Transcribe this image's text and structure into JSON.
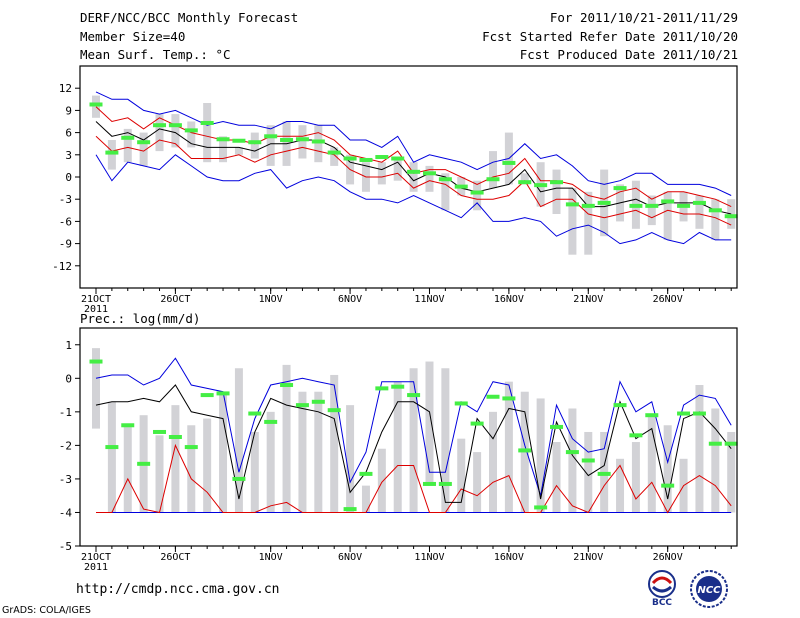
{
  "header": {
    "title": "DERF/NCC/BCC Monthly Forecast",
    "member_size": "Member Size=40",
    "variable": "Mean Surf. Temp.: °C",
    "for_range": "For 2011/10/21-2011/11/29",
    "started": "Fcst Started Refer Date 2011/10/20",
    "produced": "Fcst Produced Date 2011/10/21"
  },
  "footer": {
    "url": "http://cmdp.ncc.cma.gov.cn",
    "grads": "GrADS: COLA/IGES"
  },
  "logos": {
    "bcc": "BCC",
    "ncc": "NCC"
  },
  "colors": {
    "box": "#d2d2d6",
    "median": "#44ee44",
    "mean": "#000000",
    "sigma": "#dd0000",
    "extreme": "#0000dd"
  },
  "chart_data": [
    {
      "name": "temperature",
      "type": "line",
      "title": "Mean Surf. Temp.: °C",
      "ylim": [
        -15,
        15
      ],
      "yticks": [
        12,
        9,
        6,
        3,
        0,
        -3,
        -6,
        -9,
        -12
      ],
      "xticks": [
        {
          "day": 0,
          "label": "21OCT",
          "sub": "2011"
        },
        {
          "day": 5,
          "label": "26OCT",
          "sub": ""
        },
        {
          "day": 11,
          "label": "1NOV",
          "sub": ""
        },
        {
          "day": 16,
          "label": "6NOV",
          "sub": ""
        },
        {
          "day": 21,
          "label": "11NOV",
          "sub": ""
        },
        {
          "day": 26,
          "label": "16NOV",
          "sub": ""
        },
        {
          "day": 31,
          "label": "21NOV",
          "sub": ""
        },
        {
          "day": 36,
          "label": "26NOV",
          "sub": ""
        }
      ],
      "max": [
        11.5,
        10.5,
        10.5,
        9,
        8.5,
        9,
        8,
        7,
        7.5,
        7,
        7,
        6.5,
        7.5,
        7.5,
        7,
        7,
        5,
        5,
        4,
        5.5,
        2,
        3,
        2.5,
        2,
        1,
        2,
        2.5,
        4.5,
        2.5,
        3,
        1.5,
        -0.5,
        -1,
        -0.5,
        0.5,
        0.5,
        -1,
        -1,
        -1,
        -1.5,
        -2.5
      ],
      "min": [
        3,
        -0.5,
        2,
        1.5,
        1,
        3,
        1.5,
        0,
        -0.5,
        -0.5,
        0.5,
        1,
        -1.5,
        -0.5,
        0,
        -0.5,
        -2,
        -3,
        -3,
        -3.5,
        -2.5,
        -3.5,
        -4.5,
        -5.5,
        -3.5,
        -6,
        -6,
        -5.5,
        -6,
        -8,
        -7,
        -6.5,
        -7.5,
        -9,
        -8.5,
        -7.5,
        -8.5,
        -9,
        -7.5,
        -8.5,
        -8.5
      ],
      "sigma_upper": [
        9.5,
        7.5,
        8,
        6.5,
        8,
        7,
        6,
        5.5,
        5,
        5,
        4.5,
        5.5,
        5.5,
        5.5,
        6,
        5,
        3,
        2.5,
        2,
        3.5,
        0.5,
        1,
        1,
        0,
        -1,
        0,
        0.5,
        2.5,
        -0.5,
        -0.5,
        -1,
        -2.5,
        -3,
        -2,
        -1.5,
        -3,
        -2,
        -2,
        -2.5,
        -3,
        -4
      ],
      "sigma_lower": [
        5.5,
        3.5,
        4,
        3.5,
        5,
        4.5,
        2.5,
        2.5,
        2.5,
        3,
        2,
        3,
        3.5,
        4,
        3.5,
        3,
        1,
        0,
        0,
        0.5,
        -1.5,
        -0.5,
        -1,
        -2.5,
        -3,
        -3,
        -2.5,
        -0.5,
        -4,
        -3,
        -3,
        -5,
        -5.5,
        -5,
        -4.5,
        -5.5,
        -4.5,
        -5,
        -5,
        -5.5,
        -6.5
      ],
      "mean": [
        7.5,
        5.5,
        6,
        5,
        6.5,
        6,
        4.5,
        4,
        4,
        4,
        3.5,
        4.5,
        4.5,
        5,
        5,
        4,
        2,
        1.5,
        1,
        2,
        -0.5,
        0.5,
        0,
        -1.5,
        -2,
        -1.5,
        -1,
        1,
        -2,
        -1.5,
        -1.5,
        -4,
        -4,
        -3.5,
        -3,
        -4,
        -3.5,
        -3.5,
        -3.5,
        -4.5,
        -5
      ],
      "box_top": [
        11,
        5,
        6.5,
        6,
        8.5,
        8.5,
        7.5,
        10,
        5.5,
        4,
        6,
        7,
        7.5,
        7,
        7,
        4,
        3,
        2,
        2,
        2.5,
        2,
        1.5,
        0.5,
        0,
        -0.5,
        3.5,
        6,
        0.5,
        2,
        1,
        -1.5,
        -2,
        1,
        -1,
        -0.5,
        -2.5,
        -2,
        -2,
        -2.5,
        -3,
        -3
      ],
      "box_bottom": [
        8,
        1,
        2,
        1.5,
        3.5,
        4,
        4,
        2,
        2,
        3,
        2.5,
        1.5,
        1.5,
        2.5,
        2,
        1.5,
        -1,
        -2,
        -1,
        -0.5,
        -2,
        -2,
        -4.5,
        -2.5,
        -4.5,
        -1.5,
        -1,
        -1,
        -4,
        -5,
        -10.5,
        -10.5,
        -8,
        -6,
        -7,
        -6.5,
        -8.5,
        -6,
        -7,
        -8.5,
        -7
      ],
      "median": [
        9.8,
        3.3,
        5.3,
        4.7,
        7,
        7,
        6.3,
        7.3,
        5.1,
        4.9,
        4.7,
        5.5,
        5,
        5.1,
        4.8,
        3.3,
        2.5,
        2.3,
        2.7,
        2.5,
        0.7,
        0.5,
        -0.3,
        -1.3,
        -2.1,
        -0.3,
        1.9,
        -0.7,
        -1.1,
        -0.7,
        -3.7,
        -3.9,
        -3.5,
        -1.5,
        -3.9,
        -3.9,
        -3.3,
        -3.9,
        -3.5,
        -4.5,
        -5.3
      ]
    },
    {
      "name": "precipitation",
      "type": "line",
      "title": "Prec.: log(mm/d)",
      "ylim": [
        -5,
        1.5
      ],
      "yticks": [
        1,
        0,
        -1,
        -2,
        -3,
        -4,
        -5
      ],
      "xticks": [
        {
          "day": 0,
          "label": "21OCT",
          "sub": "2011"
        },
        {
          "day": 5,
          "label": "26OCT",
          "sub": ""
        },
        {
          "day": 11,
          "label": "1NOV",
          "sub": ""
        },
        {
          "day": 16,
          "label": "6NOV",
          "sub": ""
        },
        {
          "day": 21,
          "label": "11NOV",
          "sub": ""
        },
        {
          "day": 26,
          "label": "16NOV",
          "sub": ""
        },
        {
          "day": 31,
          "label": "21NOV",
          "sub": ""
        },
        {
          "day": 36,
          "label": "26NOV",
          "sub": ""
        }
      ],
      "max": [
        0,
        0.1,
        0.1,
        -0.2,
        0,
        0.6,
        -0.2,
        -0.3,
        -0.4,
        -2.8,
        -1.2,
        -0.2,
        -0.1,
        0,
        -0.1,
        -0.2,
        -3.1,
        -2.2,
        -0.1,
        -0.1,
        -0.1,
        -2.8,
        -2.8,
        -0.7,
        -1,
        -0.1,
        -0.2,
        -2,
        -3.5,
        -0.8,
        -1.8,
        -2.2,
        -2.1,
        -0.1,
        -1,
        -0.7,
        -2.5,
        -0.8,
        -0.5,
        -0.6,
        -1.4
      ],
      "min": [
        -4,
        -4,
        -4,
        -4,
        -4,
        -4,
        -4,
        -4,
        -4,
        -4,
        -4,
        -4,
        -4,
        -4,
        -4,
        -4,
        -4,
        -4,
        -4,
        -4,
        -4,
        -4,
        -4,
        -4,
        -4,
        -4,
        -4,
        -4,
        -4,
        -4,
        -4,
        -4,
        -4,
        -4,
        -4,
        -4,
        -4,
        -4,
        -4,
        -4,
        -4
      ],
      "mean": [
        -0.8,
        -0.7,
        -0.7,
        -0.6,
        -0.7,
        -0.2,
        -1,
        -1.1,
        -1.2,
        -3.6,
        -1.6,
        -0.6,
        -0.8,
        -0.9,
        -1,
        -1.2,
        -3.4,
        -2.8,
        -1.6,
        -0.7,
        -0.7,
        -1,
        -3.7,
        -3.7,
        -1.2,
        -1.8,
        -0.9,
        -1,
        -3.6,
        -1.3,
        -2.3,
        -2.9,
        -2.6,
        -0.7,
        -1.8,
        -1.5,
        -3.6,
        -1.2,
        -1,
        -1.5,
        -2.1
      ],
      "sigma": [
        -4,
        -4,
        -3,
        -3.9,
        -4,
        -2,
        -3,
        -3.4,
        -4,
        -4,
        -4,
        -3.8,
        -3.7,
        -4,
        -4,
        -4,
        -4,
        -4,
        -3.1,
        -2.6,
        -2.6,
        -4,
        -4,
        -3.3,
        -3.5,
        -3.1,
        -2.9,
        -4,
        -4,
        -3.2,
        -3.8,
        -4,
        -3.2,
        -2.6,
        -3.6,
        -3.1,
        -4,
        -3.2,
        -2.9,
        -3.2,
        -3.8
      ],
      "box_top": [
        0.9,
        -0.7,
        -1.4,
        -1.1,
        -1.7,
        -0.8,
        -1.4,
        -1.2,
        -0.4,
        0.3,
        -1.6,
        -1,
        0.4,
        -0.4,
        -0.4,
        0.1,
        -0.8,
        -3.2,
        -2.1,
        -0.1,
        0.3,
        0.5,
        0.3,
        -1.8,
        -2.2,
        -1,
        -0.1,
        -0.4,
        -0.6,
        -1.9,
        -0.9,
        -1.6,
        -1.6,
        -2.4,
        -1.9,
        -1.1,
        -1.4,
        -2.4,
        -0.2,
        -0.9,
        -1.6
      ],
      "box_bottom": [
        -1.5,
        -4,
        -4,
        -4,
        -4,
        -4,
        -4,
        -4,
        -4,
        -4,
        -4,
        -4,
        -4,
        -4,
        -4,
        -4,
        -4,
        -4,
        -4,
        -4,
        -4,
        -3.1,
        -4,
        -4,
        -4,
        -4,
        -4,
        -4,
        -4,
        -4,
        -4,
        -4,
        -4,
        -4,
        -4,
        -4,
        -4,
        -4,
        -4,
        -4,
        -4
      ],
      "median": [
        0.5,
        -2.05,
        -1.4,
        -2.55,
        -1.6,
        -1.75,
        -2.05,
        -0.5,
        -0.45,
        -3,
        -1.05,
        -1.3,
        -0.2,
        -0.8,
        -0.7,
        -0.95,
        -3.9,
        -2.85,
        -0.3,
        -0.25,
        -0.5,
        -3.15,
        -3.15,
        -0.75,
        -1.35,
        -0.55,
        -0.6,
        -2.15,
        -3.85,
        -1.45,
        -2.2,
        -2.45,
        -2.85,
        -0.8,
        -1.7,
        -1.1,
        -3.2,
        -1.05,
        -1.05,
        -1.95,
        -1.95
      ]
    }
  ]
}
